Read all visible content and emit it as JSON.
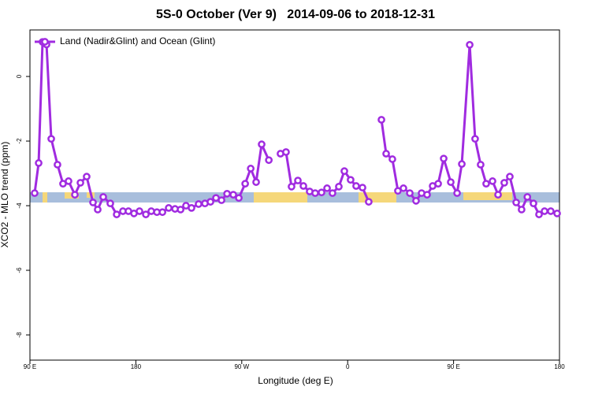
{
  "chart_data": {
    "type": "line",
    "title": "5S-0 October (Ver 9)   2014-09-06 to 2018-12-31",
    "x_label": "Longitude (deg E)",
    "y_label": "XCO2 - MLO trend (ppm)",
    "xlim": [
      90,
      540
    ],
    "ylim": [
      -8.78,
      1.44
    ],
    "xticks": [
      {
        "value": 90,
        "label": "90 E"
      },
      180,
      {
        "value": 270,
        "label": "90 W"
      },
      {
        "value": 360,
        "label": "0"
      },
      {
        "value": 450,
        "label": "90 E"
      },
      {
        "value": 540,
        "label": "180"
      }
    ],
    "yticks": [
      0,
      -2,
      -4,
      -6,
      -8
    ],
    "legend": "top-left",
    "series": [
      {
        "name": "Land (Nadir&Glint) and Ocean (Glint)",
        "color": "#a02be0",
        "x": [
          94.0,
          97.4,
          100.7,
          104.1,
          108.1,
          113.4,
          118.1,
          122.8,
          128.2,
          132.9,
          138.2,
          143.6,
          147.6,
          152.3,
          158.3,
          163.7,
          169.0,
          173.7,
          178.4,
          183.1,
          188.5,
          193.1,
          197.9,
          202.6,
          207.9,
          213.3,
          218.0,
          222.6,
          227.3,
          233.3,
          238.7,
          243.4,
          248.1,
          252.8,
          257.5,
          262.8,
          267.5,
          272.9,
          277.6,
          282.2,
          286.9,
          293.0,
          297.6,
          302.9,
          307.6,
          312.3,
          317.7,
          322.4,
          327.7,
          332.4,
          337.8,
          342.5,
          347.1,
          352.5,
          357.2,
          362.5,
          367.2,
          372.6,
          377.9,
          383.3,
          388.7,
          392.7,
          398.0,
          402.7,
          407.4,
          412.8,
          418.1,
          422.8,
          427.5,
          432.2,
          436.9,
          441.6,
          447.6,
          453.0,
          457.0,
          463.7,
          468.3,
          473.0,
          477.7,
          483.1,
          487.8,
          493.1,
          497.8,
          503.2,
          507.8,
          512.7,
          517.9,
          522.6,
          527.3,
          532.6,
          538.0
        ],
        "values": [
          -3.61,
          -2.68,
          1.07,
          0.99,
          -1.93,
          -2.73,
          -3.32,
          -3.24,
          -3.66,
          -3.29,
          -3.1,
          -3.9,
          -4.12,
          -3.73,
          -3.93,
          -4.27,
          -4.17,
          -4.17,
          -4.24,
          -4.17,
          -4.27,
          -4.17,
          -4.2,
          -4.2,
          -4.07,
          -4.1,
          -4.12,
          -4.0,
          -4.07,
          -3.95,
          -3.93,
          -3.88,
          -3.76,
          -3.83,
          -3.63,
          -3.66,
          -3.76,
          -3.32,
          -2.85,
          -3.27,
          -2.1,
          -2.59,
          null,
          -2.39,
          -2.34,
          -3.41,
          -3.22,
          -3.39,
          -3.56,
          -3.61,
          -3.59,
          -3.46,
          -3.61,
          -3.41,
          -2.93,
          -3.2,
          -3.39,
          -3.44,
          -3.88,
          null,
          -1.34,
          -2.39,
          -2.56,
          -3.54,
          -3.46,
          -3.61,
          -3.85,
          -3.61,
          -3.66,
          -3.39,
          -3.32,
          -2.54,
          -3.27,
          -3.61,
          -2.71,
          0.98,
          -1.93,
          -2.73,
          -3.32,
          -3.24,
          -3.66,
          -3.29,
          -3.1,
          -3.9,
          -4.12,
          -3.73,
          -3.93,
          -4.27,
          -4.17,
          -4.17,
          -4.24
        ]
      }
    ]
  }
}
